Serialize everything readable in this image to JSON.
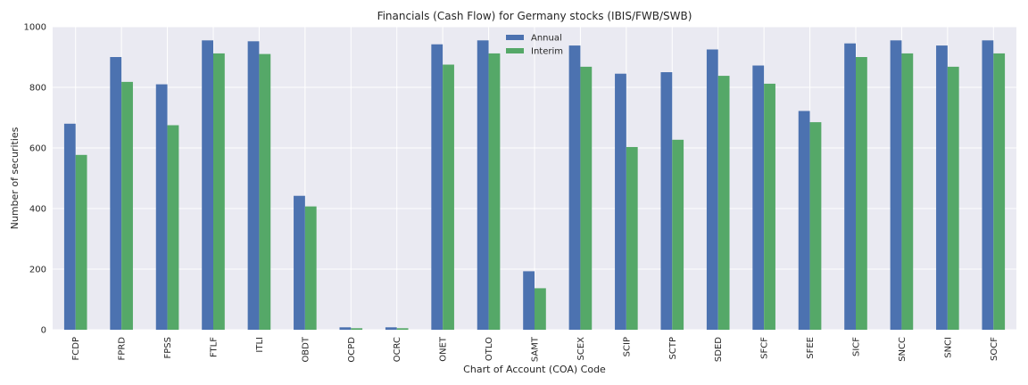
{
  "chart_data": {
    "type": "bar",
    "title": "Financials (Cash Flow) for Germany stocks (IBIS/FWB/SWB)",
    "xlabel": "Chart of Account (COA) Code",
    "ylabel": "Number of securities",
    "ylim": [
      0,
      1000
    ],
    "yticks": [
      "0",
      "200",
      "400",
      "600",
      "800",
      "1000"
    ],
    "grid": true,
    "legend_position": "top-center",
    "categories": [
      "FCDP",
      "FPRD",
      "FPSS",
      "FTLF",
      "ITLI",
      "OBDT",
      "OCPD",
      "OCRC",
      "ONET",
      "OTLO",
      "SAMT",
      "SCEX",
      "SCIP",
      "SCTP",
      "SDED",
      "SFCF",
      "SFEE",
      "SICF",
      "SNCC",
      "SNCI",
      "SOCF"
    ],
    "series": [
      {
        "name": "Annual",
        "color": "#4c72b0",
        "values": [
          680,
          900,
          810,
          955,
          952,
          442,
          8,
          8,
          942,
          955,
          193,
          938,
          845,
          850,
          925,
          872,
          722,
          945,
          955,
          938,
          955
        ]
      },
      {
        "name": "Interim",
        "color": "#55a868",
        "values": [
          577,
          818,
          675,
          912,
          910,
          407,
          5,
          5,
          875,
          912,
          137,
          868,
          603,
          627,
          838,
          812,
          685,
          900,
          912,
          868,
          912
        ]
      }
    ]
  },
  "colors": {
    "plot_background": "#eaeaf2",
    "grid": "#ffffff",
    "text": "#262626"
  }
}
